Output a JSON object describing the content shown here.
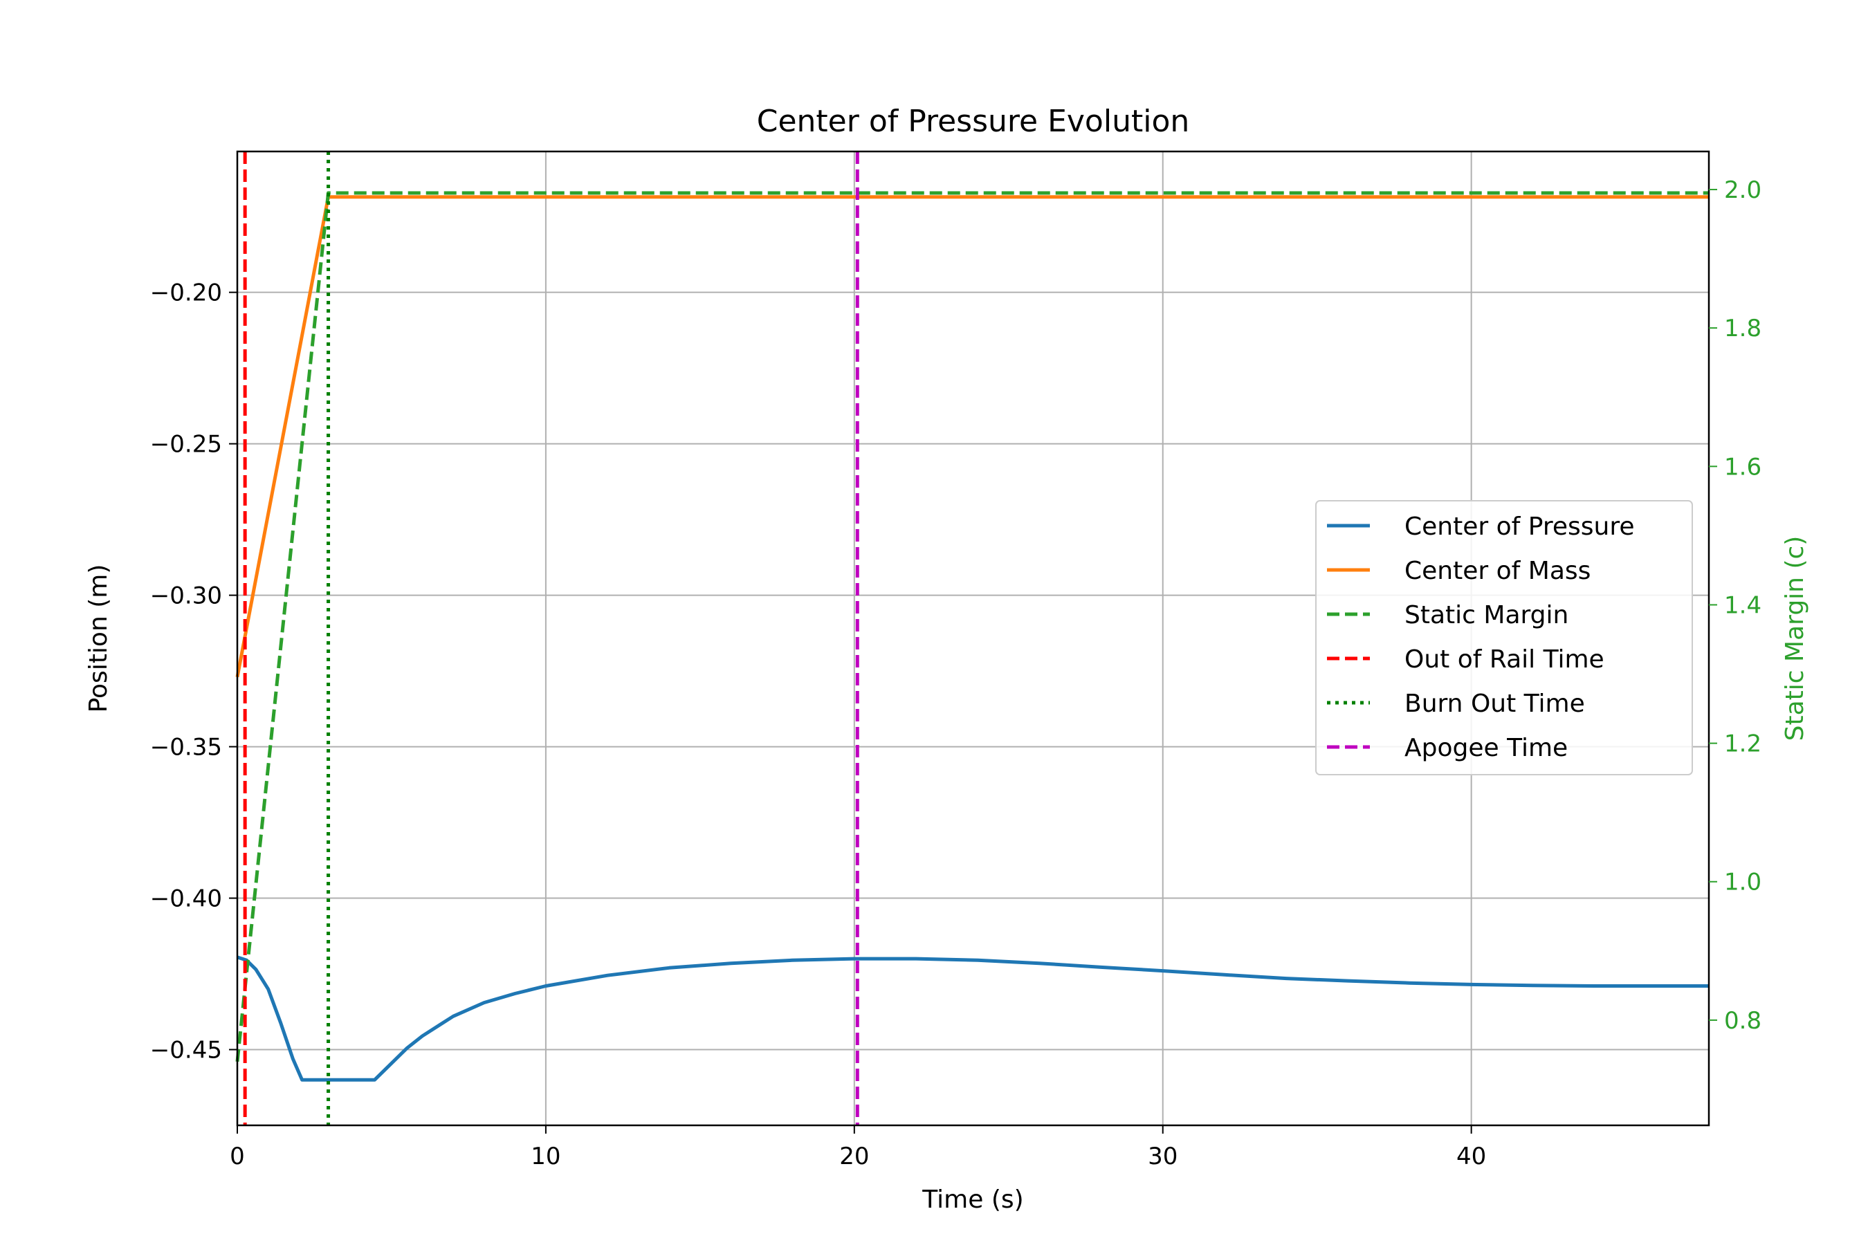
{
  "chart_data": {
    "type": "line",
    "title": "Center of Pressure Evolution",
    "xlabel": "Time (s)",
    "ylabel": "Position (m)",
    "y2label": "Static Margin (c)",
    "xlim": [
      0,
      47.7
    ],
    "ylim": [
      -0.475,
      -0.1535
    ],
    "y2lim": [
      0.648,
      2.055
    ],
    "xticks": [
      0,
      10,
      20,
      30,
      40
    ],
    "yticks": [
      -0.45,
      -0.4,
      -0.35,
      -0.3,
      -0.25,
      -0.2
    ],
    "ytick_labels": [
      "−0.45",
      "−0.40",
      "−0.35",
      "−0.30",
      "−0.25",
      "−0.20"
    ],
    "y2ticks": [
      0.8,
      1.0,
      1.2,
      1.4,
      1.6,
      1.8,
      2.0
    ],
    "y2tick_labels": [
      "0.8",
      "1.0",
      "1.2",
      "1.4",
      "1.6",
      "1.8",
      "2.0"
    ],
    "grid": true,
    "legend_position": "center-right",
    "series": [
      {
        "name": "Center of Pressure",
        "axis": "left",
        "color": "#1f77b4",
        "style": "solid",
        "x": [
          0,
          0.3,
          0.6,
          1.0,
          1.4,
          1.8,
          2.1,
          2.5,
          3.0,
          3.5,
          4.0,
          4.45,
          5.0,
          5.5,
          6,
          7,
          8,
          9,
          10,
          12,
          14,
          16,
          18,
          20,
          22,
          24,
          26,
          28,
          30,
          32,
          34,
          36,
          38,
          40,
          42,
          44,
          46,
          47.7
        ],
        "y": [
          -0.4195,
          -0.4205,
          -0.4235,
          -0.43,
          -0.441,
          -0.453,
          -0.46,
          -0.46,
          -0.46,
          -0.46,
          -0.46,
          -0.46,
          -0.4545,
          -0.4495,
          -0.4455,
          -0.439,
          -0.4345,
          -0.4315,
          -0.429,
          -0.4255,
          -0.423,
          -0.4215,
          -0.4205,
          -0.42,
          -0.42,
          -0.4205,
          -0.4215,
          -0.4228,
          -0.424,
          -0.4253,
          -0.4265,
          -0.4273,
          -0.428,
          -0.4285,
          -0.4288,
          -0.429,
          -0.429,
          -0.429
        ]
      },
      {
        "name": "Center of Mass",
        "axis": "left",
        "color": "#ff7f0e",
        "style": "solid",
        "x": [
          0,
          2.95,
          47.7
        ],
        "y": [
          -0.327,
          -0.1685,
          -0.1685
        ]
      },
      {
        "name": "Static Margin",
        "axis": "right",
        "color": "#2ca02c",
        "style": "dashed",
        "x": [
          0,
          2.95,
          47.7
        ],
        "y": [
          0.74,
          1.995,
          1.995
        ]
      }
    ],
    "vlines": [
      {
        "name": "Out of Rail Time",
        "x": 0.25,
        "color": "#ff0000",
        "style": "dashed"
      },
      {
        "name": "Burn Out Time",
        "x": 2.95,
        "color": "#008000",
        "style": "dotted"
      },
      {
        "name": "Apogee Time",
        "x": 20.1,
        "color": "#bf00bf",
        "style": "dashed"
      }
    ],
    "right_axis_color": "#2ca02c"
  }
}
